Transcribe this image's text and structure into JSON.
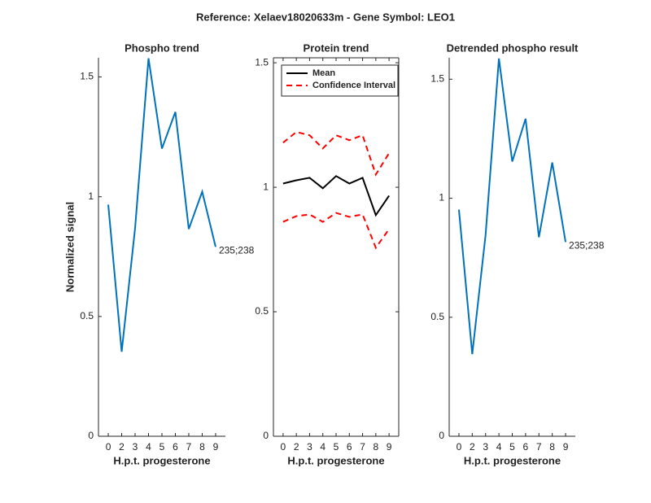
{
  "title": "Reference:  Xelaev18020633m - Gene Symbol:  LEO1",
  "chart_data": [
    {
      "type": "line",
      "title": "Phospho trend",
      "xlabel": "H.p.t. progesterone",
      "ylabel": "Normalized signal",
      "categories": [
        "0",
        "2",
        "3",
        "4",
        "5",
        "6",
        "7",
        "8",
        "9"
      ],
      "series": [
        {
          "color": "#0072bd",
          "values": [
            0.967,
            0.353,
            0.869,
            1.578,
            1.201,
            1.354,
            0.865,
            1.021,
            0.791
          ]
        }
      ],
      "annotation": "235;238",
      "ylim": [
        0,
        1.58
      ],
      "yticks": [
        0,
        0.5,
        1,
        1.5
      ],
      "box": false
    },
    {
      "type": "line",
      "title": "Protein trend",
      "xlabel": "H.p.t. progesterone",
      "categories": [
        "0",
        "2",
        "3",
        "4",
        "5",
        "6",
        "7",
        "8",
        "9"
      ],
      "series": [
        {
          "name": "Mean",
          "color": "#000000",
          "dashed": false,
          "values": [
            1.015,
            1.028,
            1.038,
            0.996,
            1.045,
            1.015,
            1.038,
            0.888,
            0.966
          ]
        },
        {
          "name": "Confidence Interval",
          "color": "#ff0000",
          "dashed": true,
          "values": [
            1.179,
            1.222,
            1.209,
            1.156,
            1.209,
            1.189,
            1.209,
            1.051,
            1.137
          ],
          "lower": [
            0.861,
            0.884,
            0.891,
            0.861,
            0.897,
            0.881,
            0.891,
            0.757,
            0.832
          ]
        }
      ],
      "legend": "upper-left",
      "ylim": [
        0,
        1.52
      ],
      "yticks": [
        0,
        0.5,
        1,
        1.5
      ],
      "box": true
    },
    {
      "type": "line",
      "title": "Detrended phospho result",
      "xlabel": "H.p.t. progesterone",
      "categories": [
        "0",
        "2",
        "3",
        "4",
        "5",
        "6",
        "7",
        "8",
        "9"
      ],
      "series": [
        {
          "color": "#0072bd",
          "values": [
            0.952,
            0.345,
            0.846,
            1.587,
            1.154,
            1.334,
            0.836,
            1.15,
            0.816
          ]
        }
      ],
      "annotation": "235;238",
      "ylim": [
        0,
        1.59
      ],
      "yticks": [
        0,
        0.5,
        1,
        1.5
      ],
      "box": false
    }
  ]
}
